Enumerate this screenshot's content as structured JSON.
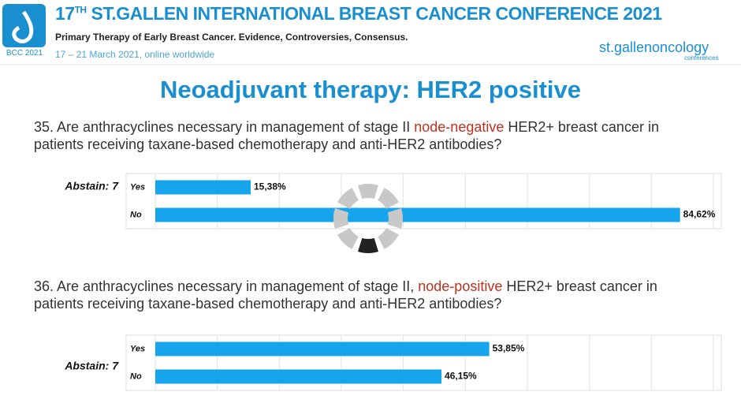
{
  "header": {
    "title_number": "17",
    "title_suffix": "TH",
    "title_rest": " ST.GALLEN INTERNATIONAL BREAST CANCER CONFERENCE 2021",
    "subtitle": "Primary Therapy of Early Breast Cancer. Evidence, Controversies, Consensus.",
    "dates": "17 – 21 March 2021, online worldwide",
    "logo_text": "BCC 2021",
    "partner_main": "st.gallenoncology",
    "partner_sub": "conferences"
  },
  "slide_title": "Neoadjuvant therapy: HER2 positive",
  "chart_data": [
    {
      "type": "bar",
      "orientation": "horizontal",
      "question_before": "35. Are anthracyclines necessary in management of stage II ",
      "question_highlight": "node-negative",
      "question_after": " HER2+ breast cancer in patients receiving taxane-based chemotherapy and anti-HER2 antibodies?",
      "annotation": "Abstain: 7",
      "categories": [
        "Yes",
        "No"
      ],
      "values": [
        15.38,
        84.62
      ],
      "value_labels": [
        "15,38%",
        "84,62%"
      ],
      "color": "#16a5ec",
      "xlim": [
        0,
        90
      ],
      "xticks": [
        0,
        10,
        20,
        30,
        40,
        50,
        60,
        70,
        80,
        90
      ],
      "grid": true
    },
    {
      "type": "bar",
      "orientation": "horizontal",
      "question_before": "36. Are anthracyclines necessary in management of stage II, ",
      "question_highlight": "node-positive",
      "question_after": " HER2+ breast cancer in patients receiving taxane-based chemotherapy and anti-HER2 antibodies?",
      "annotation": "Abstain: 7",
      "categories": [
        "Yes",
        "No"
      ],
      "values": [
        53.85,
        46.15
      ],
      "value_labels": [
        "53,85%",
        "46,15%"
      ],
      "color": "#16a5ec",
      "xlim": [
        0,
        90
      ],
      "xticks": [
        0,
        10,
        20,
        30,
        40,
        50,
        60,
        70,
        80,
        90
      ],
      "grid": true
    }
  ]
}
